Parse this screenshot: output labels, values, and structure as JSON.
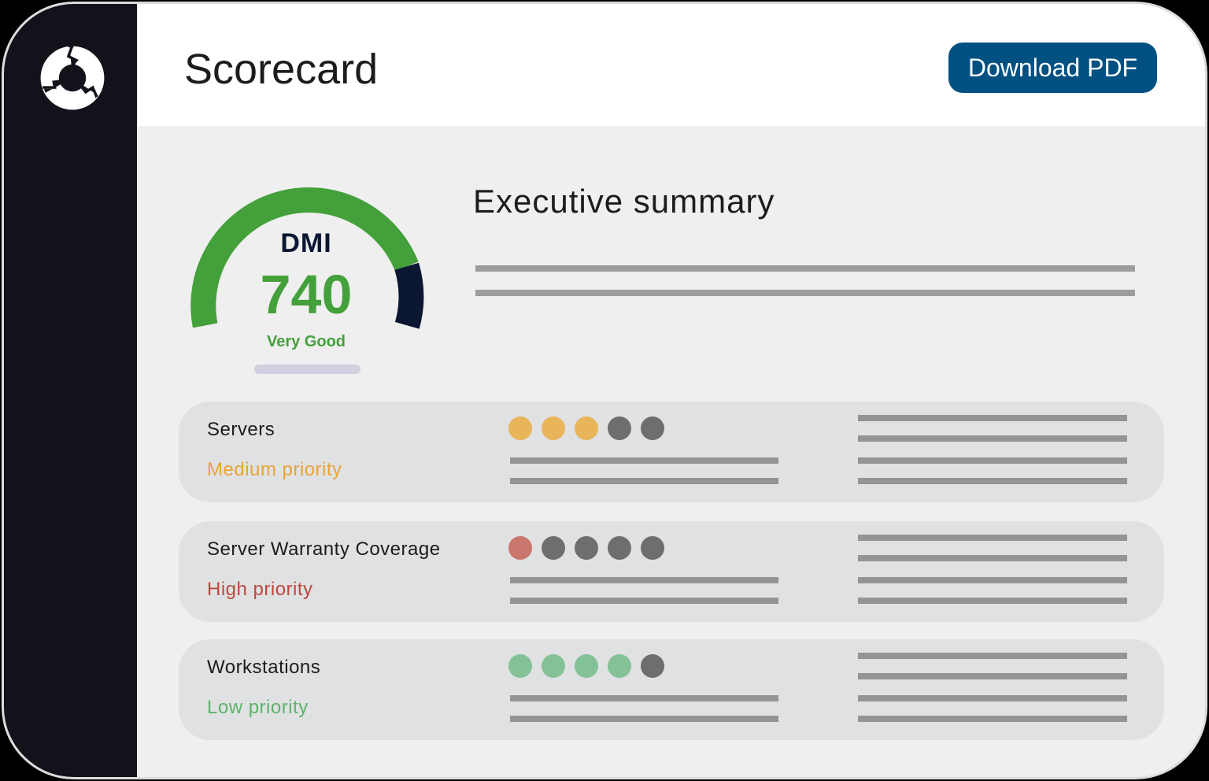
{
  "app": {
    "logo_icon": "recycle-ring-icon",
    "title": "Scorecard",
    "download_button": "Download PDF"
  },
  "colors": {
    "sidebar": "#12131a",
    "button": "#005082",
    "gauge_green": "#43a03a",
    "gauge_dark": "#0b1633",
    "medium": "#e8a532",
    "high": "#c0473d",
    "low": "#5db36a",
    "dot_medium": "#e8b55b",
    "dot_high": "#c9766d",
    "dot_low": "#85c197",
    "dot_empty": "#6d6e70"
  },
  "gauge": {
    "label": "DMI",
    "value": "740",
    "rating": "Very Good"
  },
  "executive_summary": {
    "title": "Executive summary"
  },
  "rows": [
    {
      "name": "Servers",
      "priority": "Medium priority",
      "level": "medium",
      "filled": 3,
      "total": 5
    },
    {
      "name": "Server Warranty Coverage",
      "priority": "High priority",
      "level": "high",
      "filled": 1,
      "total": 5
    },
    {
      "name": "Workstations",
      "priority": "Low priority",
      "level": "low",
      "filled": 4,
      "total": 5
    }
  ]
}
